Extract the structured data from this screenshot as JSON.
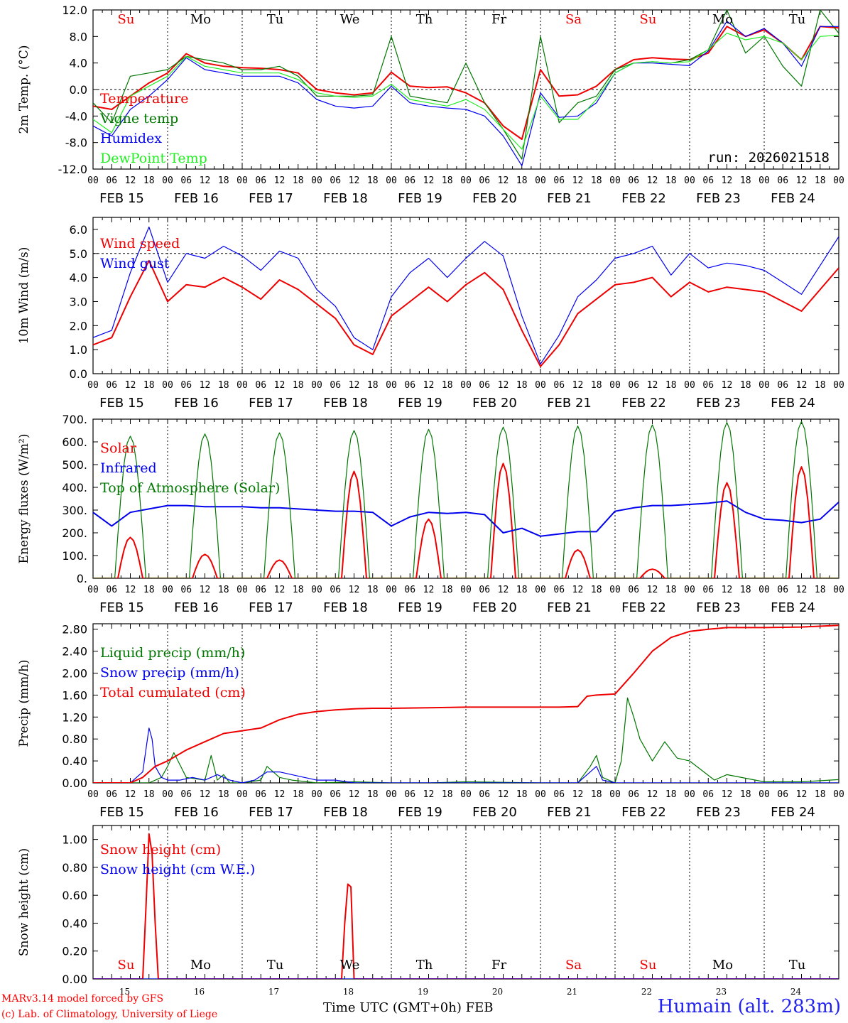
{
  "run_label": "run: 2026021518",
  "credit_line_1": "MARv3.14 model forced by GFS",
  "credit_line_2": "(c) Lab. of Climatology, University of Liege",
  "station": "Humain (alt. 283m)",
  "x_axis_title": "Time UTC (GMT+0h) FEB",
  "day_names": [
    "Su",
    "Mo",
    "Tu",
    "We",
    "Th",
    "Fr",
    "Sa",
    "Su",
    "Mo",
    "Tu"
  ],
  "weekend_flags": [
    true,
    false,
    false,
    false,
    false,
    false,
    true,
    true,
    false,
    false
  ],
  "date_labels": [
    "FEB 15",
    "FEB 16",
    "FEB 17",
    "FEB 18",
    "FEB 19",
    "FEB 20",
    "FEB 21",
    "FEB 22",
    "FEB 23",
    "FEB 24"
  ],
  "day_numbers": [
    "15",
    "16",
    "17",
    "18",
    "19",
    "20",
    "21",
    "22",
    "23",
    "24"
  ],
  "hour_labels": [
    "00",
    "06",
    "12",
    "18"
  ],
  "colors": {
    "red": "#ee0000",
    "green": "#007700",
    "blue": "#0000ee",
    "lightgreen": "#22ee22",
    "credit": "#ff0000",
    "station": "#2222ee"
  },
  "chart_data": [
    {
      "type": "line",
      "title": "",
      "ylabel": "2m Temp. (°C)",
      "ylim": [
        -12,
        12
      ],
      "yticks": [
        "-12.0",
        "-8.0",
        "-4.0",
        "0.0",
        "4.0",
        "8.0",
        "12.0"
      ],
      "reference_line": 0,
      "x_unit": "hours since FEB 15 00 UTC",
      "xlim": [
        0,
        240
      ],
      "series": [
        {
          "name": "Temperature",
          "color": "red",
          "x": [
            0,
            6,
            12,
            18,
            24,
            30,
            36,
            42,
            48,
            54,
            60,
            66,
            72,
            78,
            84,
            90,
            96,
            102,
            108,
            114,
            120,
            126,
            132,
            138,
            144,
            150,
            156,
            162,
            168,
            174,
            180,
            186,
            192,
            198,
            204,
            210,
            216,
            222,
            228,
            234,
            240
          ],
          "y": [
            -2.5,
            -3.0,
            -1.0,
            1.0,
            2.5,
            5.4,
            4.0,
            3.5,
            3.3,
            3.2,
            3.0,
            2.5,
            0.0,
            -0.5,
            -0.8,
            -0.5,
            2.6,
            0.5,
            0.3,
            0.4,
            -0.5,
            -2.0,
            -5.5,
            -7.5,
            3.0,
            -1.0,
            -0.8,
            0.5,
            3.0,
            4.5,
            4.8,
            4.6,
            4.5,
            5.5,
            9.5,
            8.0,
            9.0,
            7.0,
            4.5,
            9.5,
            9.3
          ]
        },
        {
          "name": "Vigne temp",
          "color": "green",
          "x": [
            0,
            6,
            12,
            18,
            24,
            30,
            36,
            42,
            48,
            54,
            60,
            66,
            72,
            78,
            84,
            90,
            96,
            102,
            108,
            114,
            120,
            126,
            132,
            138,
            144,
            150,
            156,
            162,
            168,
            174,
            180,
            186,
            192,
            198,
            204,
            210,
            216,
            222,
            228,
            234,
            240
          ],
          "y": [
            -2.0,
            -5.0,
            2.0,
            2.5,
            3.0,
            5.0,
            4.5,
            4.0,
            3.0,
            3.0,
            3.5,
            2.0,
            -1.0,
            -1.0,
            -1.0,
            -0.8,
            8.0,
            -1.0,
            -1.5,
            -2.0,
            4.0,
            -2.0,
            -6.0,
            -10.5,
            8.0,
            -5.0,
            -2.0,
            -1.0,
            3.0,
            4.0,
            4.2,
            4.0,
            4.5,
            6.0,
            12.0,
            5.5,
            8.0,
            3.5,
            0.5,
            12.0,
            8.5
          ]
        },
        {
          "name": "Humidex",
          "color": "blue",
          "x": [
            0,
            6,
            12,
            18,
            24,
            30,
            36,
            42,
            48,
            54,
            60,
            66,
            72,
            78,
            84,
            90,
            96,
            102,
            108,
            114,
            120,
            126,
            132,
            138,
            144,
            150,
            156,
            162,
            168,
            174,
            180,
            186,
            192,
            198,
            204,
            210,
            216,
            222,
            228,
            234,
            240
          ],
          "y": [
            -5.5,
            -7.0,
            -3.0,
            -1.0,
            1.5,
            4.8,
            3.0,
            2.5,
            2.0,
            2.0,
            2.0,
            1.0,
            -1.5,
            -2.5,
            -2.8,
            -2.5,
            0.5,
            -2.0,
            -2.5,
            -2.8,
            -3.0,
            -4.0,
            -7.0,
            -11.5,
            -0.5,
            -4.2,
            -4.0,
            -2.0,
            2.5,
            4.0,
            4.0,
            3.8,
            3.6,
            5.8,
            10.3,
            8.0,
            9.2,
            7.0,
            3.5,
            9.5,
            9.5
          ]
        },
        {
          "name": "DewPoint Temp",
          "color": "lightgreen",
          "x": [
            0,
            6,
            12,
            18,
            24,
            30,
            36,
            42,
            48,
            54,
            60,
            66,
            72,
            78,
            84,
            90,
            96,
            102,
            108,
            114,
            120,
            126,
            132,
            138,
            144,
            150,
            156,
            162,
            168,
            174,
            180,
            186,
            192,
            198,
            204,
            210,
            216,
            222,
            228,
            234,
            240
          ],
          "y": [
            -4.5,
            -6.5,
            -1.0,
            0.5,
            2.0,
            5.0,
            3.5,
            3.0,
            2.5,
            2.5,
            2.5,
            1.5,
            -0.5,
            -1.0,
            -1.2,
            -1.0,
            0.8,
            -1.5,
            -2.0,
            -2.5,
            -1.5,
            -3.0,
            -6.0,
            -9.0,
            -1.0,
            -4.5,
            -4.5,
            -1.5,
            2.5,
            4.0,
            4.2,
            4.0,
            4.2,
            6.0,
            8.5,
            7.5,
            8.0,
            7.0,
            4.5,
            8.0,
            8.2
          ]
        }
      ]
    },
    {
      "type": "line",
      "title": "",
      "ylabel": "10m Wind (m/s)",
      "ylim": [
        0,
        6.5
      ],
      "yticks": [
        "0.0",
        "1.0",
        "2.0",
        "3.0",
        "4.0",
        "5.0",
        "6.0"
      ],
      "reference_line": 5,
      "x_unit": "hours since FEB 15 00 UTC",
      "xlim": [
        0,
        240
      ],
      "series": [
        {
          "name": "Wind speed",
          "color": "red",
          "x": [
            0,
            6,
            12,
            18,
            24,
            30,
            36,
            42,
            48,
            54,
            60,
            66,
            72,
            78,
            84,
            90,
            96,
            102,
            108,
            114,
            120,
            126,
            132,
            138,
            144,
            150,
            156,
            162,
            168,
            174,
            180,
            186,
            192,
            198,
            204,
            210,
            216,
            222,
            228,
            234,
            240
          ],
          "y": [
            1.2,
            1.5,
            3.2,
            4.7,
            3.0,
            3.7,
            3.6,
            4.0,
            3.6,
            3.1,
            3.9,
            3.5,
            2.9,
            2.3,
            1.2,
            0.8,
            2.4,
            3.0,
            3.6,
            3.0,
            3.7,
            4.2,
            3.5,
            1.8,
            0.3,
            1.2,
            2.5,
            3.1,
            3.7,
            3.8,
            4.0,
            3.2,
            3.8,
            3.4,
            3.6,
            3.5,
            3.4,
            3.0,
            2.6,
            3.5,
            4.4
          ]
        },
        {
          "name": "Wind gust",
          "color": "blue",
          "x": [
            0,
            6,
            12,
            18,
            24,
            30,
            36,
            42,
            48,
            54,
            60,
            66,
            72,
            78,
            84,
            90,
            96,
            102,
            108,
            114,
            120,
            126,
            132,
            138,
            144,
            150,
            156,
            162,
            168,
            174,
            180,
            186,
            192,
            198,
            204,
            210,
            216,
            222,
            228,
            234,
            240
          ],
          "y": [
            1.5,
            1.8,
            4.2,
            6.1,
            3.8,
            5.0,
            4.8,
            5.3,
            4.9,
            4.3,
            5.1,
            4.8,
            3.5,
            2.8,
            1.5,
            1.0,
            3.2,
            4.2,
            4.8,
            4.0,
            4.8,
            5.5,
            4.9,
            2.4,
            0.4,
            1.6,
            3.2,
            3.9,
            4.8,
            5.0,
            5.3,
            4.1,
            5.0,
            4.4,
            4.6,
            4.5,
            4.3,
            3.8,
            3.3,
            4.5,
            5.7
          ]
        }
      ]
    },
    {
      "type": "line",
      "title": "",
      "ylabel": "Energy fluxes (W/m²)",
      "ylim": [
        0,
        700
      ],
      "yticks": [
        "0.",
        "100.",
        "200.",
        "300.",
        "400.",
        "500.",
        "600.",
        "700."
      ],
      "x_unit": "hours since FEB 15 00 UTC",
      "xlim": [
        0,
        240
      ],
      "series": [
        {
          "name": "Solar",
          "color": "red",
          "day_peaks": [
            180,
            105,
            80,
            470,
            260,
            505,
            125,
            40,
            420,
            490
          ]
        },
        {
          "name": "Infrared",
          "color": "blue",
          "x": [
            0,
            6,
            12,
            18,
            24,
            30,
            36,
            42,
            48,
            54,
            60,
            66,
            72,
            78,
            84,
            90,
            96,
            102,
            108,
            114,
            120,
            126,
            132,
            138,
            144,
            150,
            156,
            162,
            168,
            174,
            180,
            186,
            192,
            198,
            204,
            210,
            216,
            222,
            228,
            234,
            240
          ],
          "y": [
            290,
            230,
            290,
            305,
            320,
            320,
            315,
            315,
            315,
            310,
            310,
            305,
            300,
            295,
            295,
            290,
            230,
            270,
            290,
            285,
            290,
            280,
            200,
            220,
            185,
            195,
            205,
            205,
            295,
            310,
            320,
            320,
            325,
            330,
            340,
            290,
            260,
            255,
            245,
            260,
            335
          ]
        },
        {
          "name": "Top of Atmosphere (Solar)",
          "color": "green",
          "day_peaks": [
            625,
            635,
            640,
            650,
            655,
            665,
            670,
            675,
            685,
            690
          ]
        }
      ]
    },
    {
      "type": "line",
      "title": "",
      "ylabel": "Precip (mm/h)",
      "ylim": [
        0,
        2.9
      ],
      "yticks": [
        "0.00",
        "0.40",
        "0.80",
        "1.20",
        "1.60",
        "2.00",
        "2.40",
        "2.80"
      ],
      "x_unit": "hours since FEB 15 00 UTC",
      "xlim": [
        0,
        240
      ],
      "series": [
        {
          "name": "Liquid precip (mm/h)",
          "color": "green",
          "x": [
            0,
            12,
            18,
            22,
            24,
            26,
            30,
            36,
            38,
            40,
            42,
            44,
            48,
            54,
            56,
            60,
            64,
            72,
            84,
            96,
            108,
            120,
            144,
            156,
            160,
            162,
            164,
            168,
            170,
            172,
            174,
            176,
            180,
            184,
            188,
            192,
            200,
            204,
            216,
            228,
            240
          ],
          "y": [
            0,
            0,
            0,
            0.1,
            0.3,
            0.55,
            0.1,
            0.05,
            0.5,
            0.05,
            0.15,
            0,
            0,
            0.05,
            0.3,
            0.1,
            0.05,
            0,
            0.02,
            0,
            0,
            0.02,
            0,
            0,
            0.3,
            0.5,
            0.1,
            0,
            0.4,
            1.55,
            1.2,
            0.8,
            0.4,
            0.75,
            0.45,
            0.4,
            0.05,
            0.15,
            0.02,
            0.02,
            0.06
          ]
        },
        {
          "name": "Snow precip (mm/h)",
          "color": "blue",
          "x": [
            0,
            12,
            16,
            18,
            19,
            20,
            22,
            24,
            28,
            32,
            36,
            40,
            44,
            48,
            52,
            56,
            60,
            64,
            68,
            72,
            78,
            84,
            96,
            108,
            120,
            144,
            156,
            160,
            162,
            164,
            168,
            240
          ],
          "y": [
            0,
            0,
            0.2,
            1.0,
            0.8,
            0.3,
            0.1,
            0.05,
            0.05,
            0.1,
            0.05,
            0.15,
            0.05,
            0,
            0.05,
            0.2,
            0.2,
            0.15,
            0.1,
            0.05,
            0.05,
            0,
            0,
            0,
            0,
            0,
            0,
            0.2,
            0.3,
            0.05,
            0,
            0
          ]
        },
        {
          "name": "Total cumulated (cm)",
          "color": "red",
          "x": [
            0,
            12,
            16,
            20,
            24,
            30,
            36,
            42,
            48,
            54,
            60,
            66,
            72,
            78,
            84,
            90,
            96,
            108,
            120,
            132,
            144,
            150,
            156,
            159,
            162,
            168,
            174,
            180,
            186,
            192,
            198,
            204,
            216,
            228,
            240
          ],
          "y": [
            0,
            0,
            0.1,
            0.3,
            0.4,
            0.6,
            0.75,
            0.9,
            0.95,
            1.0,
            1.15,
            1.25,
            1.3,
            1.33,
            1.35,
            1.36,
            1.36,
            1.37,
            1.38,
            1.38,
            1.38,
            1.38,
            1.39,
            1.58,
            1.6,
            1.62,
            2.0,
            2.4,
            2.65,
            2.76,
            2.8,
            2.83,
            2.83,
            2.84,
            2.87
          ]
        }
      ]
    },
    {
      "type": "line",
      "title": "",
      "ylabel": "Snow height (cm)",
      "ylim": [
        0,
        1.1
      ],
      "yticks": [
        "0.00",
        "0.20",
        "0.40",
        "0.60",
        "0.80",
        "1.00"
      ],
      "x_unit": "hours since FEB 15 00 UTC",
      "xlim": [
        0,
        240
      ],
      "series": [
        {
          "name": "Snow height (cm)",
          "color": "red",
          "x": [
            0,
            16,
            17,
            18,
            19,
            20,
            21,
            80,
            81,
            82,
            83,
            84,
            240
          ],
          "y": [
            0,
            0,
            0.5,
            1.04,
            0.9,
            0.4,
            0,
            0,
            0.4,
            0.68,
            0.66,
            0,
            0
          ]
        },
        {
          "name": "Snow height (cm W.E.)",
          "color": "blue",
          "x": [
            0,
            240
          ],
          "y": [
            0,
            0
          ]
        }
      ]
    }
  ]
}
